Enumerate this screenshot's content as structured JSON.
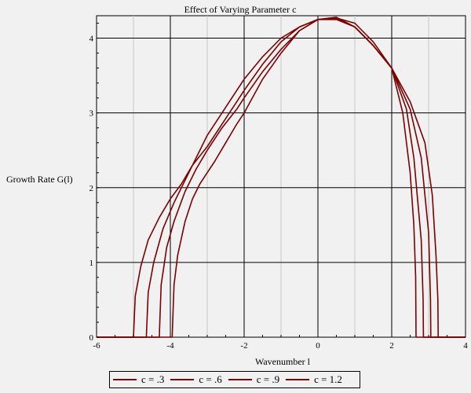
{
  "chart_data": {
    "type": "line",
    "title": "Effect of Varying Parameter c",
    "xlabel": "Wavenumber l",
    "ylabel": "Growth Rate G(l)",
    "xlim": [
      -6,
      4
    ],
    "ylim": [
      0,
      4.3
    ],
    "x_ticks": [
      -6,
      -4,
      -2,
      0,
      2,
      4
    ],
    "y_ticks": [
      0,
      1,
      2,
      3,
      4
    ],
    "grid": true,
    "legend_position": "bottom",
    "line_color": "#7b0000",
    "series": [
      {
        "name": "c = .3",
        "x": [
          -6,
          -3.95,
          -3.9,
          -3.8,
          -3.6,
          -3.4,
          -3.2,
          -3.0,
          -2.8,
          -2.5,
          -2.2,
          -2.0,
          -1.5,
          -1.0,
          -0.5,
          0.0,
          0.5,
          1.0,
          1.5,
          2.0,
          2.3,
          2.5,
          2.6,
          2.65,
          2.66,
          4
        ],
        "y": [
          0,
          0,
          0.7,
          1.1,
          1.55,
          1.85,
          2.05,
          2.2,
          2.35,
          2.6,
          2.85,
          3.0,
          3.45,
          3.8,
          4.1,
          4.25,
          4.28,
          4.15,
          3.9,
          3.6,
          3.0,
          2.2,
          1.5,
          0.8,
          0,
          0
        ]
      },
      {
        "name": "c = .6",
        "x": [
          -6,
          -4.3,
          -4.25,
          -4.1,
          -3.9,
          -3.6,
          -3.3,
          -3.0,
          -2.6,
          -2.2,
          -2.0,
          -1.5,
          -1.0,
          -0.5,
          0.0,
          0.5,
          1.0,
          1.5,
          2.0,
          2.4,
          2.6,
          2.8,
          2.85,
          2.86,
          4
        ],
        "y": [
          0,
          0,
          0.7,
          1.2,
          1.55,
          1.95,
          2.25,
          2.5,
          2.8,
          3.05,
          3.2,
          3.55,
          3.85,
          4.1,
          4.25,
          4.27,
          4.15,
          3.9,
          3.6,
          3.05,
          2.4,
          1.3,
          0.5,
          0,
          0
        ]
      },
      {
        "name": "c = .9",
        "x": [
          -6,
          -4.65,
          -4.6,
          -4.45,
          -4.2,
          -3.9,
          -3.6,
          -3.3,
          -3.0,
          -2.6,
          -2.2,
          -2.0,
          -1.5,
          -1.0,
          -0.5,
          0.0,
          0.5,
          1.0,
          1.5,
          2.0,
          2.5,
          2.8,
          3.0,
          3.05,
          3.06,
          4
        ],
        "y": [
          0,
          0,
          0.6,
          1.0,
          1.45,
          1.8,
          2.1,
          2.4,
          2.7,
          3.0,
          3.3,
          3.45,
          3.75,
          4.0,
          4.15,
          4.25,
          4.25,
          4.15,
          3.9,
          3.6,
          3.05,
          2.4,
          1.4,
          0.5,
          0,
          0
        ]
      },
      {
        "name": "c = 1.2",
        "x": [
          -6,
          -5.0,
          -4.95,
          -4.8,
          -4.6,
          -4.3,
          -4.0,
          -3.7,
          -3.4,
          -3.0,
          -2.6,
          -2.2,
          -2.0,
          -1.5,
          -1.0,
          -0.5,
          0.0,
          0.5,
          1.0,
          1.5,
          2.0,
          2.5,
          2.9,
          3.1,
          3.2,
          3.25,
          3.26,
          4
        ],
        "y": [
          0,
          0,
          0.55,
          0.95,
          1.3,
          1.6,
          1.85,
          2.05,
          2.3,
          2.55,
          2.85,
          3.15,
          3.3,
          3.65,
          3.95,
          4.15,
          4.25,
          4.27,
          4.2,
          3.95,
          3.6,
          3.15,
          2.6,
          1.9,
          1.1,
          0.5,
          0,
          0
        ]
      }
    ]
  }
}
